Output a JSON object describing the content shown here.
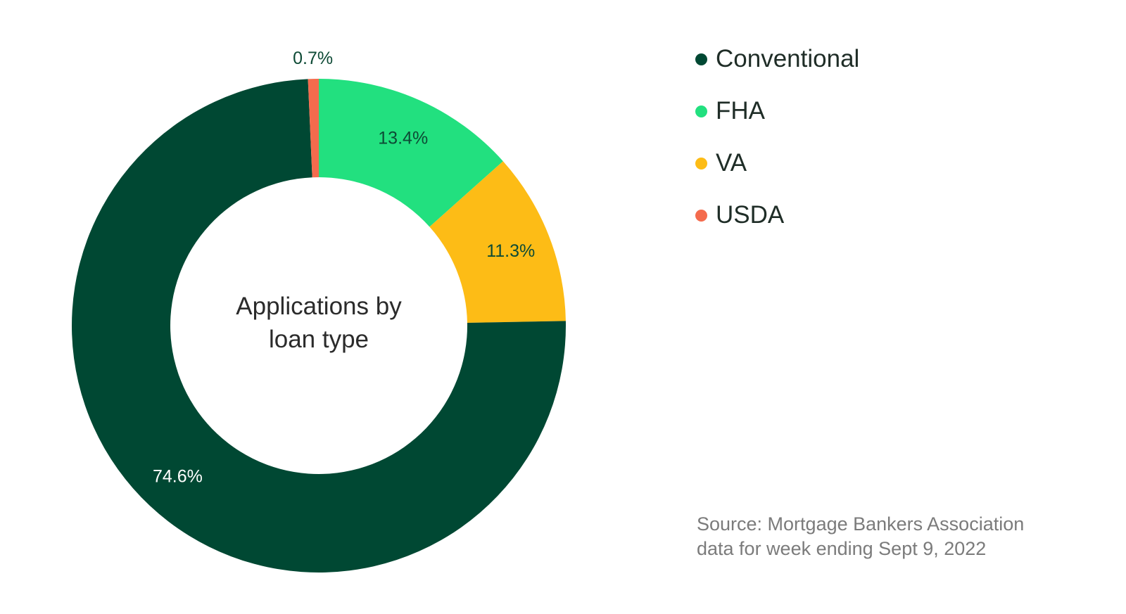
{
  "chart_data": {
    "type": "pie",
    "style": "donut",
    "title": "Applications by loan type",
    "categories": [
      "Conventional",
      "FHA",
      "VA",
      "USDA"
    ],
    "values": [
      74.6,
      13.4,
      11.3,
      0.7
    ],
    "value_labels": [
      "74.6%",
      "13.4%",
      "11.3%",
      "0.7%"
    ],
    "colors": [
      "#004833",
      "#22e07f",
      "#fdbc16",
      "#f46b4d"
    ],
    "label_colors": [
      "#ffffff",
      "#0d4a35",
      "#0d4a35",
      "#0d4a35"
    ],
    "legend_position": "right",
    "source_note": "Source: Mortgage Bankers Association data for week ending Sept 9, 2022"
  }
}
